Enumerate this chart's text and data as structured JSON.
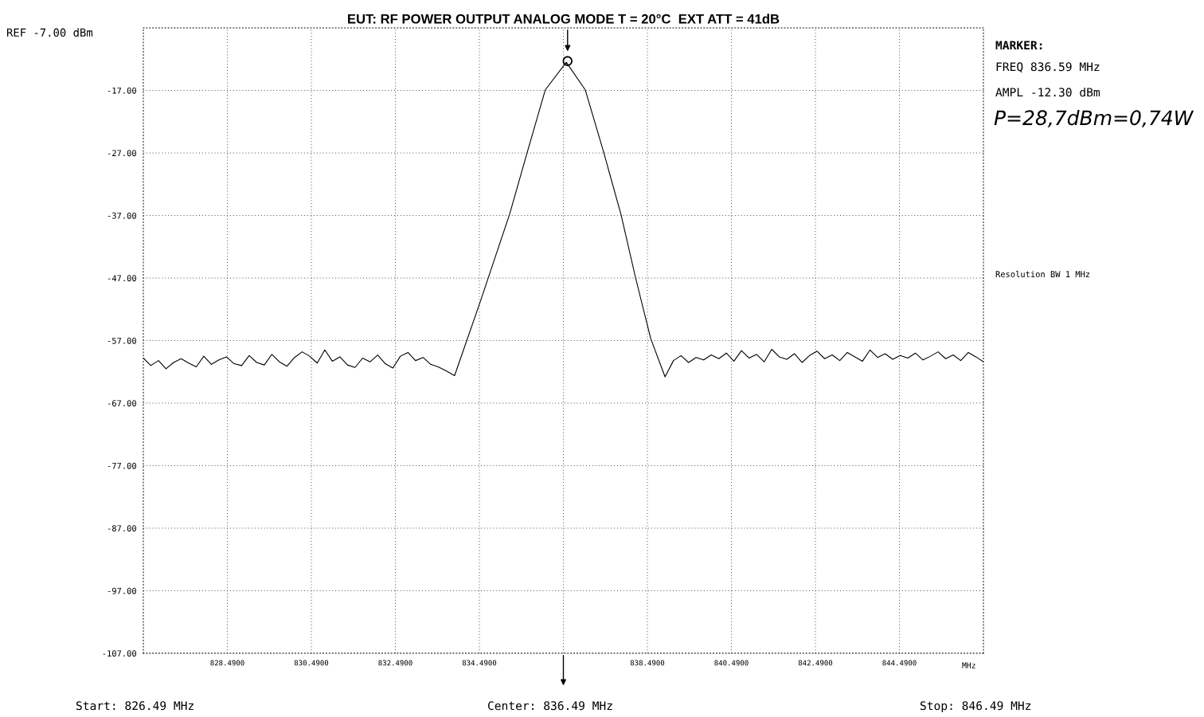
{
  "chart_data": {
    "type": "line",
    "title": "EUT: RF POWER OUTPUT ANALOG MODE T = 20°C  EXT ATT = 41dB",
    "series": [
      {
        "color": "#000000",
        "x": [
          826.49,
          826.67,
          826.85,
          827.03,
          827.21,
          827.39,
          827.57,
          827.75,
          827.93,
          828.11,
          828.29,
          828.47,
          828.65,
          828.83,
          829.01,
          829.19,
          829.37,
          829.55,
          829.73,
          829.91,
          830.09,
          830.27,
          830.45,
          830.63,
          830.81,
          830.99,
          831.17,
          831.35,
          831.53,
          831.71,
          831.89,
          832.07,
          832.25,
          832.43,
          832.61,
          832.79,
          832.97,
          833.15,
          833.33,
          833.51,
          833.69,
          833.9,
          834.51,
          835.21,
          835.63,
          836.06,
          836.56,
          837.01,
          837.45,
          837.86,
          838.21,
          838.57,
          838.91,
          839.11,
          839.29,
          839.47,
          839.65,
          839.83,
          840.01,
          840.19,
          840.37,
          840.55,
          840.73,
          840.91,
          841.09,
          841.27,
          841.45,
          841.63,
          841.81,
          841.99,
          842.17,
          842.35,
          842.53,
          842.71,
          842.89,
          843.07,
          843.25,
          843.43,
          843.61,
          843.79,
          843.97,
          844.15,
          844.33,
          844.51,
          844.69,
          844.87,
          845.05,
          845.23,
          845.41,
          845.59,
          845.77,
          845.95,
          846.13,
          846.31,
          846.49
        ],
        "values": [
          -59.8,
          -61.0,
          -60.2,
          -61.5,
          -60.5,
          -59.9,
          -60.6,
          -61.2,
          -59.5,
          -60.8,
          -60.1,
          -59.6,
          -60.7,
          -61.0,
          -59.4,
          -60.5,
          -60.9,
          -59.2,
          -60.4,
          -61.1,
          -59.7,
          -58.8,
          -59.5,
          -60.6,
          -58.5,
          -60.3,
          -59.6,
          -60.9,
          -61.3,
          -59.8,
          -60.4,
          -59.3,
          -60.7,
          -61.4,
          -59.5,
          -58.9,
          -60.2,
          -59.7,
          -60.8,
          -61.2,
          -61.8,
          -62.6,
          -50.8,
          -36.8,
          -26.9,
          -16.9,
          -12.5,
          -16.9,
          -26.9,
          -36.8,
          -47.0,
          -56.7,
          -62.8,
          -60.2,
          -59.4,
          -60.5,
          -59.7,
          -60.1,
          -59.3,
          -59.9,
          -59.0,
          -60.3,
          -58.6,
          -59.8,
          -59.2,
          -60.4,
          -58.4,
          -59.6,
          -60.0,
          -59.1,
          -60.5,
          -59.4,
          -58.7,
          -59.9,
          -59.3,
          -60.2,
          -58.9,
          -59.6,
          -60.3,
          -58.5,
          -59.7,
          -59.1,
          -60.0,
          -59.4,
          -59.8,
          -59.0,
          -60.1,
          -59.5,
          -58.8,
          -59.9,
          -59.3,
          -60.2,
          -58.9,
          -59.6,
          -60.4
        ]
      },
      {
        "type": "scatter",
        "marker": "circle",
        "color": "#000000",
        "x": [
          836.59
        ],
        "values": [
          -12.3
        ]
      }
    ],
    "xlim": [
      826.49,
      846.49
    ],
    "xticks": [
      {
        "value": 828.49,
        "label": "828.4900"
      },
      {
        "value": 830.49,
        "label": "830.4900"
      },
      {
        "value": 832.49,
        "label": "832.4900"
      },
      {
        "value": 834.49,
        "label": "834.4900"
      },
      {
        "value": 836.49,
        "label": null
      },
      {
        "value": 838.49,
        "label": "838.4900"
      },
      {
        "value": 840.49,
        "label": "840.4900"
      },
      {
        "value": 842.49,
        "label": "842.4900"
      },
      {
        "value": 844.49,
        "label": "844.4900"
      }
    ],
    "ylim": [
      -107,
      -7
    ],
    "yticks": [
      {
        "value": -107,
        "label": "-107.00"
      },
      {
        "value": -97,
        "label": "-97.00"
      },
      {
        "value": -87,
        "label": "-87.00"
      },
      {
        "value": -77,
        "label": "-77.00"
      },
      {
        "value": -67,
        "label": "-67.00"
      },
      {
        "value": -57,
        "label": "-57.00"
      },
      {
        "value": -47,
        "label": "-47.00"
      },
      {
        "value": -37,
        "label": "-37.00"
      },
      {
        "value": -27,
        "label": "-27.00"
      },
      {
        "value": -17,
        "label": "-17.00"
      }
    ],
    "grid": true,
    "annotations": [
      "REF -7.00 dBm",
      "MARKER:",
      "FREQ 836.59 MHz",
      "AMPL -12.30 dBm",
      "P=28,7dBm=0,74W",
      "Resolution BW 1 MHz",
      "MHz",
      "Start: 826.49 MHz",
      "Center: 836.49 MHz",
      "Stop: 846.49 MHz"
    ]
  }
}
